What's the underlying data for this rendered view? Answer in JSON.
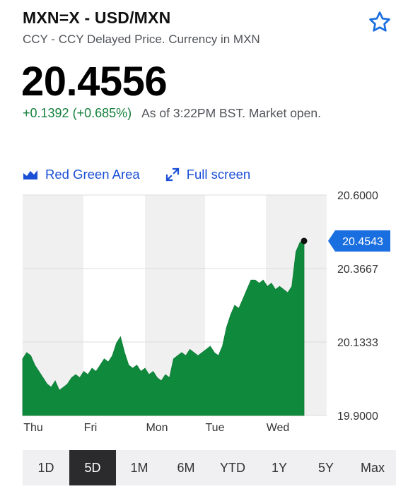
{
  "header": {
    "ticker": "MXN=X - USD/MXN",
    "subtitle": "CCY - CCY Delayed Price. Currency in MXN",
    "price": "20.4556",
    "change": "+0.1392 (+0.685%)",
    "as_of": "As of 3:22PM BST. Market open."
  },
  "chart_options": {
    "style_label": "Red Green Area",
    "fullscreen_label": "Full screen",
    "style_icon": "area-chart-icon",
    "fullscreen_icon": "expand-icon"
  },
  "chart_data": {
    "type": "area",
    "ylim": [
      19.9,
      20.6
    ],
    "y_ticks": [
      "20.6000",
      "20.3667",
      "20.1333",
      "19.9000"
    ],
    "x_ticks": [
      "Thu",
      "Fri",
      "Mon",
      "Tue",
      "Wed"
    ],
    "current_value_label": "20.4543",
    "current_value": 20.4543,
    "fill_color": "#0f8a3c",
    "current_label_color": "#1a6fe0",
    "series": [
      {
        "values": [
          20.08,
          20.1,
          20.09,
          20.06,
          20.04,
          20.02,
          20.0,
          19.99,
          20.01,
          19.98,
          19.99,
          20.0,
          20.02,
          20.03,
          20.02,
          20.04,
          20.03,
          20.05,
          20.04,
          20.06,
          20.08,
          20.07,
          20.09,
          20.13,
          20.15,
          20.1,
          20.06,
          20.05,
          20.06,
          20.04,
          20.05,
          20.03,
          20.04,
          20.02,
          20.01,
          20.03,
          20.02,
          20.08,
          20.09,
          20.1,
          20.09,
          20.11,
          20.1,
          20.09,
          20.1,
          20.11,
          20.12,
          20.1,
          20.09,
          20.12,
          20.18,
          20.22,
          20.25,
          20.24,
          20.27,
          20.3,
          20.33,
          20.33,
          20.32,
          20.33,
          20.31,
          20.32,
          20.3,
          20.31,
          20.3,
          20.29,
          20.31,
          20.42,
          20.45,
          20.4543
        ]
      }
    ]
  },
  "ranges": [
    "1D",
    "5D",
    "1M",
    "6M",
    "YTD",
    "1Y",
    "5Y",
    "Max"
  ],
  "active_range": "5D"
}
